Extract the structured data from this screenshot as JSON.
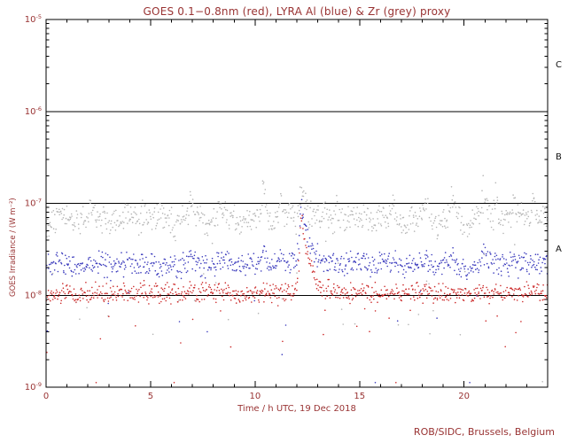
{
  "page": {
    "background": "#ffffff"
  },
  "footer": {
    "credit": "ROB/SIDC, Brussels, Belgium"
  },
  "chart_data": {
    "type": "scatter",
    "title": "GOES 0.1−0.8nm (red), LYRA Al (blue) & Zr (grey) proxy",
    "xlabel": "Time / h UTC, 19 Dec 2018",
    "ylabel": "GOES Irradiance / (W m⁻²)",
    "x_axis": {
      "unit": "hours UTC",
      "range": [
        0,
        24
      ],
      "major_ticks": [
        0,
        5,
        10,
        15,
        20
      ],
      "minor_step": 1
    },
    "y_axis": {
      "scale": "log10",
      "range_exponents": [
        -9,
        -5
      ],
      "tick_exponents": [
        -5,
        -6,
        -7,
        -8,
        -9
      ]
    },
    "grid": false,
    "axis_color": "#000000",
    "text_color": "#993333",
    "flare_classes": [
      {
        "label": "C",
        "band_exponents": [
          -6,
          -5
        ]
      },
      {
        "label": "B",
        "band_exponents": [
          -7,
          -6
        ]
      },
      {
        "label": "A",
        "band_exponents": [
          -8,
          -7
        ]
      }
    ],
    "class_boundary_lines_exp": [
      -6,
      -7,
      -8
    ],
    "series": [
      {
        "name": "goes-xray",
        "legend": "GOES 0.1−0.8nm (red)",
        "color": "#cc2a2a",
        "base_log10": -7.98,
        "noise_log10": 0.06,
        "flare_gain": 1.0,
        "spike_gain": 0.15,
        "orbit_mod": 0.0,
        "outlier_p": 0.03,
        "outlier_depth": 0.5
      },
      {
        "name": "lyra-al-proxy",
        "legend": "LYRA Al (blue)",
        "color": "#3b3bbd",
        "base_log10": -7.7,
        "noise_log10": 0.07,
        "flare_gain": 0.78,
        "spike_gain": 0.3,
        "orbit_mod": 0.05,
        "outlier_p": 0.02,
        "outlier_depth": 0.7
      },
      {
        "name": "lyra-zr-proxy",
        "legend": "LYRA Zr (grey)",
        "color": "#b5b5b5",
        "base_log10": -7.25,
        "noise_log10": 0.08,
        "flare_gain": 0.4,
        "spike_gain": 1.0,
        "orbit_mod": 0.11,
        "outlier_p": 0.045,
        "outlier_depth": 1.1
      }
    ],
    "flare_event": {
      "t_hours": 12.2,
      "amp_log10": 0.9,
      "rise_h": 0.1,
      "decay_h": 0.4,
      "peak_values": {
        "goes-xray": 8e-08,
        "lyra-al-proxy": 1e-07,
        "lyra-zr-proxy": 1.3e-07
      }
    },
    "baseline_values": {
      "goes-xray": 1e-08,
      "lyra-al-proxy": 2e-08,
      "lyra-zr-proxy": 5.5e-08
    },
    "grey_spikes": [
      {
        "t": 2.1,
        "amp": 0.2
      },
      {
        "t": 4.6,
        "amp": 0.2
      },
      {
        "t": 6.9,
        "amp": 0.25
      },
      {
        "t": 8.3,
        "amp": 0.2
      },
      {
        "t": 10.4,
        "amp": 0.55
      },
      {
        "t": 11.2,
        "amp": 0.35
      },
      {
        "t": 13.9,
        "amp": 0.3
      },
      {
        "t": 15.2,
        "amp": 0.22
      },
      {
        "t": 16.6,
        "amp": 0.25
      },
      {
        "t": 18.2,
        "amp": 0.28
      },
      {
        "t": 19.4,
        "amp": 0.22
      },
      {
        "t": 20.9,
        "amp": 0.5
      },
      {
        "t": 21.5,
        "amp": 0.35
      },
      {
        "t": 22.4,
        "amp": 0.25
      },
      {
        "t": 23.3,
        "amp": 0.4
      }
    ],
    "orbit_period_hours": 1.55,
    "points_per_series": 800
  }
}
